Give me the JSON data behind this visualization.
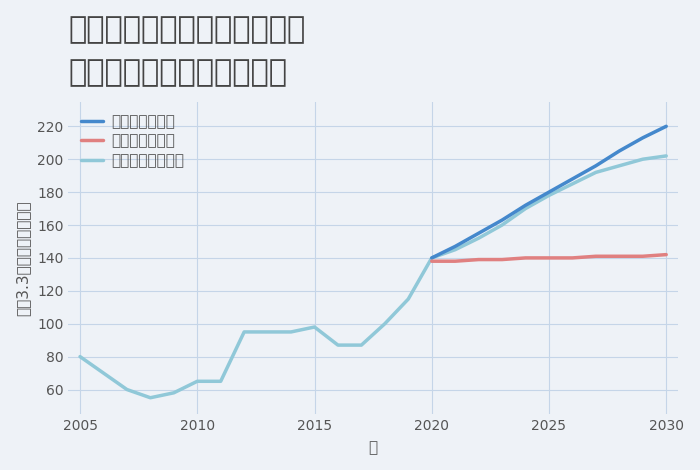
{
  "title": "大阪府大阪市住吉区長居東の\n中古マンションの価格推移",
  "xlabel": "年",
  "ylabel": "平（3.3㎡）単価（万円）",
  "background_color": "#eef2f7",
  "plot_bg_color": "#eef2f7",
  "grid_color": "#c5d5e8",
  "normal_scenario": {
    "label": "ノーマルシナリオ",
    "color": "#90c8d8",
    "years": [
      2005,
      2006,
      2007,
      2008,
      2009,
      2010,
      2011,
      2012,
      2013,
      2014,
      2015,
      2016,
      2017,
      2018,
      2019,
      2020,
      2021,
      2022,
      2023,
      2024,
      2025,
      2026,
      2027,
      2028,
      2029,
      2030
    ],
    "values": [
      80,
      70,
      60,
      55,
      58,
      65,
      65,
      95,
      95,
      95,
      98,
      87,
      87,
      100,
      115,
      140,
      145,
      152,
      160,
      170,
      178,
      185,
      192,
      196,
      200,
      202
    ]
  },
  "good_scenario": {
    "label": "グッドシナリオ",
    "color": "#4488cc",
    "years": [
      2020,
      2021,
      2022,
      2023,
      2024,
      2025,
      2026,
      2027,
      2028,
      2029,
      2030
    ],
    "values": [
      140,
      147,
      155,
      163,
      172,
      180,
      188,
      196,
      205,
      213,
      220
    ]
  },
  "bad_scenario": {
    "label": "バッドシナリオ",
    "color": "#e08080",
    "years": [
      2020,
      2021,
      2022,
      2023,
      2024,
      2025,
      2026,
      2027,
      2028,
      2029,
      2030
    ],
    "values": [
      138,
      138,
      139,
      139,
      140,
      140,
      140,
      141,
      141,
      141,
      142
    ]
  },
  "ylim": [
    45,
    235
  ],
  "yticks": [
    60,
    80,
    100,
    120,
    140,
    160,
    180,
    200,
    220
  ],
  "xlim": [
    2004.5,
    2030.5
  ],
  "xticks": [
    2005,
    2010,
    2015,
    2020,
    2025,
    2030
  ],
  "title_fontsize": 22,
  "label_fontsize": 11,
  "tick_fontsize": 10,
  "legend_fontsize": 11,
  "line_width": 2.5
}
